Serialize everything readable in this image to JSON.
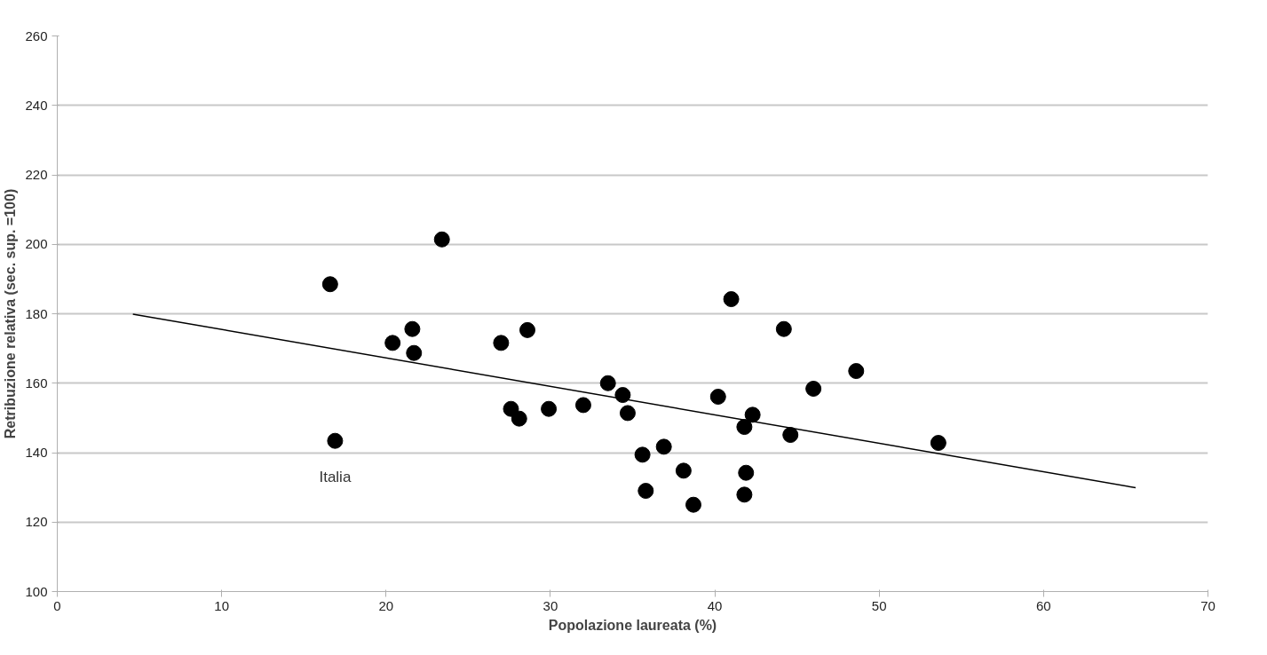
{
  "chart_data": {
    "type": "scatter",
    "xlabel": "Popolazione laureata (%)",
    "ylabel": "Retribuzione relativa (sec. sup. =100)",
    "xlim": [
      0,
      70
    ],
    "xticks": [
      0,
      10,
      20,
      30,
      40,
      50,
      60,
      70
    ],
    "ylim": [
      100,
      260
    ],
    "yticks": [
      100,
      120,
      140,
      160,
      180,
      200,
      220,
      240,
      260
    ],
    "grid": "y",
    "marker": "circle",
    "series": [
      {
        "color": "#000000",
        "x": [
          16.6,
          16.9,
          20.4,
          21.6,
          21.7,
          23.4,
          27.0,
          28.6,
          27.6,
          28.1,
          29.9,
          32.0,
          33.5,
          34.4,
          34.7,
          35.6,
          35.8,
          36.9,
          38.1,
          38.7,
          40.2,
          41.0,
          41.8,
          42.3,
          41.9,
          41.8,
          44.2,
          44.6,
          46.0,
          48.6,
          53.6
        ],
        "values": [
          188.5,
          143.4,
          171.6,
          175.6,
          168.7,
          201.4,
          171.6,
          175.3,
          152.6,
          149.8,
          152.6,
          153.7,
          160.0,
          156.6,
          151.4,
          139.4,
          129.0,
          141.7,
          134.8,
          125.0,
          156.1,
          184.2,
          147.4,
          150.9,
          134.2,
          127.9,
          175.6,
          145.1,
          158.4,
          163.5,
          142.8
        ]
      },
      {
        "type": "line",
        "color": "#000000",
        "marker": "none",
        "line_style": "solid",
        "x": [
          4.6,
          65.6
        ],
        "values": [
          179.9,
          129.9
        ]
      }
    ],
    "annotations": [
      {
        "text": "Italia",
        "x": 16.9,
        "y": 143.4
      }
    ]
  }
}
